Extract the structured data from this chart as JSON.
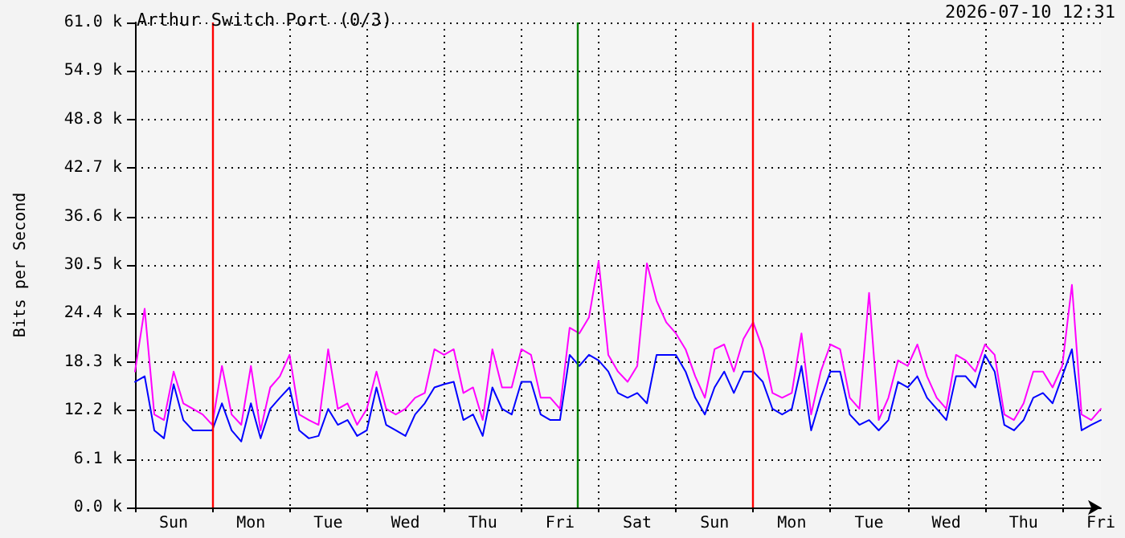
{
  "chart_data": {
    "type": "line",
    "title": "Arthur Switch Port (0/3)",
    "annotations": [
      "2026-07-10 12:31"
    ],
    "ylabel": "Bits per Second",
    "categories": [
      null,
      null,
      null,
      null,
      "Sun",
      null,
      null,
      null,
      null,
      null,
      null,
      null,
      "Mon",
      null,
      null,
      null,
      null,
      null,
      null,
      null,
      "Tue",
      null,
      null,
      null,
      null,
      null,
      null,
      null,
      "Wed",
      null,
      null,
      null,
      null,
      null,
      null,
      null,
      "Thu",
      null,
      null,
      null,
      null,
      null,
      null,
      null,
      "Fri",
      null,
      null,
      null,
      null,
      null,
      null,
      null,
      "Sat",
      null,
      null,
      null,
      null,
      null,
      null,
      null,
      "Sun",
      null,
      null,
      null,
      null,
      null,
      null,
      null,
      "Mon",
      null,
      null,
      null,
      null,
      null,
      null,
      null,
      "Tue",
      null,
      null,
      null,
      null,
      null,
      null,
      null,
      "Wed",
      null,
      null,
      null,
      null,
      null,
      null,
      null,
      "Thu",
      null,
      null,
      null,
      null,
      null,
      null,
      null,
      "Fri"
    ],
    "series": [
      {
        "color": "#ff00ff",
        "values": [
          17.1,
          25.0,
          11.7,
          11.0,
          17.1,
          13.1,
          12.4,
          11.7,
          10.4,
          17.8,
          11.7,
          10.4,
          17.8,
          9.7,
          15.1,
          16.5,
          19.2,
          11.7,
          11.0,
          10.4,
          19.9,
          12.4,
          13.1,
          10.4,
          12.4,
          17.1,
          12.4,
          11.7,
          12.4,
          13.8,
          14.4,
          19.9,
          19.2,
          19.9,
          14.4,
          15.1,
          11.0,
          19.9,
          15.1,
          15.1,
          19.9,
          19.2,
          13.8,
          13.8,
          12.4,
          22.6,
          21.9,
          23.9,
          31.0,
          19.2,
          17.1,
          15.8,
          17.8,
          30.7,
          26.0,
          23.3,
          21.9,
          19.9,
          16.5,
          13.8,
          19.9,
          20.5,
          17.1,
          21.2,
          23.3,
          19.9,
          14.4,
          13.8,
          14.4,
          21.9,
          11.7,
          17.1,
          20.5,
          19.9,
          13.8,
          12.4,
          27.0,
          11.0,
          13.8,
          18.5,
          17.8,
          20.5,
          16.5,
          13.8,
          12.4,
          19.2,
          18.5,
          17.1,
          20.5,
          19.2,
          11.7,
          11.0,
          13.1,
          17.1,
          17.1,
          15.1,
          17.8,
          28.0,
          11.7,
          11.0,
          12.4
        ]
      },
      {
        "color": "#0000ff",
        "values": [
          15.8,
          16.5,
          9.7,
          8.7,
          15.5,
          11.0,
          9.7,
          9.7,
          9.7,
          13.1,
          9.7,
          8.3,
          13.1,
          8.7,
          12.4,
          13.8,
          15.1,
          9.7,
          8.7,
          9.0,
          12.4,
          10.4,
          11.0,
          9.0,
          9.7,
          15.1,
          10.4,
          9.7,
          9.0,
          11.7,
          13.1,
          15.1,
          15.5,
          15.8,
          11.0,
          11.7,
          9.0,
          15.1,
          12.4,
          11.7,
          15.8,
          15.8,
          11.7,
          11.0,
          11.0,
          19.2,
          17.8,
          19.2,
          18.5,
          17.1,
          14.4,
          13.8,
          14.4,
          13.1,
          19.2,
          19.2,
          19.2,
          17.1,
          13.8,
          11.7,
          15.1,
          17.1,
          14.4,
          17.1,
          17.1,
          15.8,
          12.4,
          11.7,
          12.4,
          17.8,
          9.7,
          13.8,
          17.1,
          17.1,
          11.7,
          10.4,
          11.0,
          9.7,
          11.0,
          15.8,
          15.1,
          16.5,
          13.8,
          12.4,
          11.0,
          16.5,
          16.5,
          15.1,
          19.2,
          17.1,
          10.4,
          9.7,
          11.0,
          13.8,
          14.4,
          13.1,
          16.5,
          19.9,
          9.7,
          10.4,
          11.0
        ]
      }
    ],
    "ylim": [
      0,
      61.0
    ],
    "yticks": [
      {
        "value": 0,
        "label": "0.0 k"
      },
      {
        "value": 6.1,
        "label": "6.1 k"
      },
      {
        "value": 12.2,
        "label": "12.2 k"
      },
      {
        "value": 18.3,
        "label": "18.3 k"
      },
      {
        "value": 24.4,
        "label": "24.4 k"
      },
      {
        "value": 30.5,
        "label": "30.5 k"
      },
      {
        "value": 36.6,
        "label": "36.6 k"
      },
      {
        "value": 42.7,
        "label": "42.7 k"
      },
      {
        "value": 48.8,
        "label": "48.8 k"
      },
      {
        "value": 54.9,
        "label": "54.9 k"
      },
      {
        "value": 61.0,
        "label": "61.0 k"
      }
    ],
    "grid": true,
    "marker": "none",
    "line_style": "solid"
  }
}
